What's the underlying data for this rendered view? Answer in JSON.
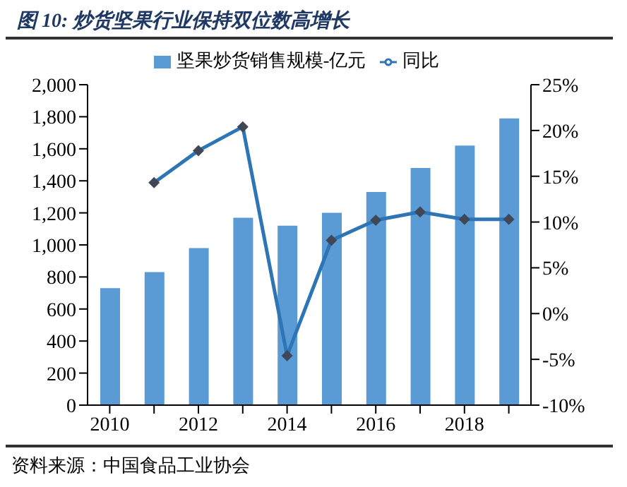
{
  "chart_data": {
    "type": "bar",
    "title": "图 10: 炒货坚果行业保持双位数高增长",
    "categories": [
      "2010",
      null,
      "2012",
      null,
      "2014",
      null,
      "2016",
      null,
      "2018",
      null
    ],
    "series": [
      {
        "name": "坚果炒货销售规模-亿元",
        "color": "#5b9bd5",
        "values": [
          730,
          830,
          980,
          1170,
          1120,
          1200,
          1330,
          1480,
          1620,
          1790
        ]
      },
      {
        "name": "同比",
        "type": "line",
        "axis": "y2",
        "color": "#2e75b6",
        "marker": "diamond",
        "values": [
          null,
          14.3,
          17.8,
          20.4,
          -4.6,
          8.0,
          10.2,
          11.1,
          10.3,
          10.3
        ]
      }
    ],
    "ylim": [
      0,
      2000
    ],
    "yticks": [
      {
        "value": 0,
        "label": "0"
      },
      {
        "value": 200,
        "label": "200"
      },
      {
        "value": 400,
        "label": "400"
      },
      {
        "value": 600,
        "label": "600"
      },
      {
        "value": 800,
        "label": "800"
      },
      {
        "value": 1000,
        "label": "1,000"
      },
      {
        "value": 1200,
        "label": "1,200"
      },
      {
        "value": 1400,
        "label": "1,400"
      },
      {
        "value": 1600,
        "label": "1,600"
      },
      {
        "value": 1800,
        "label": "1,800"
      },
      {
        "value": 2000,
        "label": "2,000"
      }
    ],
    "y2lim": [
      -10,
      25
    ],
    "y2ticks": [
      {
        "value": -10,
        "label": "-10%"
      },
      {
        "value": -5,
        "label": "-5%"
      },
      {
        "value": 0,
        "label": "0%"
      },
      {
        "value": 5,
        "label": "5%"
      },
      {
        "value": 10,
        "label": "10%"
      },
      {
        "value": 15,
        "label": "15%"
      },
      {
        "value": 20,
        "label": "20%"
      },
      {
        "value": 25,
        "label": "25%"
      }
    ],
    "legend": "top",
    "grid": false,
    "annotations": [
      "资料来源：中国食品工业协会"
    ]
  }
}
